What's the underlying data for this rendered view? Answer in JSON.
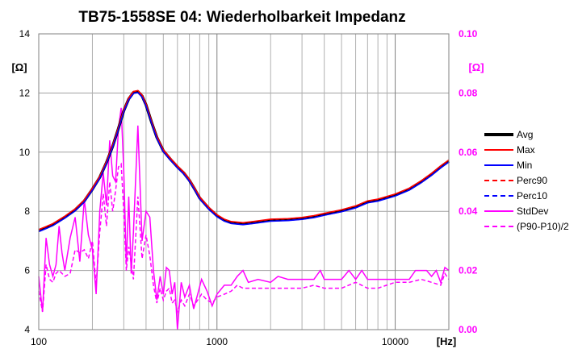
{
  "chart_data": {
    "type": "line",
    "title": "TB75-1558SE 04: Wiederholbarkeit Impedanz",
    "x_scale": "log",
    "xlim": [
      100,
      20000
    ],
    "x_tick_labels": [
      "100",
      "1000",
      "10000"
    ],
    "x_unit": "[Hz]",
    "y_left": {
      "unit": "[Ω]",
      "ylim": [
        4,
        14
      ],
      "tick_labels": [
        "4",
        "6",
        "8",
        "10",
        "12",
        "14"
      ],
      "color": "#000000"
    },
    "y_right": {
      "unit": "[Ω]",
      "ylim": [
        0,
        0.1
      ],
      "tick_labels": [
        "0.00",
        "0.02",
        "0.04",
        "0.06",
        "0.08",
        "0.10"
      ],
      "color": "#ff00ff"
    },
    "grid": true,
    "legend_position": "right",
    "colors": {
      "accent": "#ff00ff"
    },
    "impedance_curve": [
      [
        100,
        7.35
      ],
      [
        110,
        7.45
      ],
      [
        120,
        7.55
      ],
      [
        140,
        7.8
      ],
      [
        160,
        8.05
      ],
      [
        180,
        8.35
      ],
      [
        200,
        8.75
      ],
      [
        220,
        9.15
      ],
      [
        240,
        9.65
      ],
      [
        260,
        10.2
      ],
      [
        280,
        10.8
      ],
      [
        300,
        11.4
      ],
      [
        320,
        11.8
      ],
      [
        340,
        12.02
      ],
      [
        360,
        12.05
      ],
      [
        380,
        11.9
      ],
      [
        400,
        11.6
      ],
      [
        430,
        11.0
      ],
      [
        460,
        10.5
      ],
      [
        500,
        10.05
      ],
      [
        550,
        9.75
      ],
      [
        600,
        9.5
      ],
      [
        650,
        9.3
      ],
      [
        700,
        9.05
      ],
      [
        750,
        8.75
      ],
      [
        800,
        8.45
      ],
      [
        900,
        8.1
      ],
      [
        1000,
        7.85
      ],
      [
        1100,
        7.7
      ],
      [
        1200,
        7.62
      ],
      [
        1400,
        7.58
      ],
      [
        1600,
        7.62
      ],
      [
        2000,
        7.7
      ],
      [
        2500,
        7.72
      ],
      [
        3000,
        7.76
      ],
      [
        3500,
        7.82
      ],
      [
        4000,
        7.9
      ],
      [
        5000,
        8.02
      ],
      [
        6000,
        8.15
      ],
      [
        7000,
        8.32
      ],
      [
        8000,
        8.38
      ],
      [
        10000,
        8.55
      ],
      [
        12000,
        8.75
      ],
      [
        14000,
        9.0
      ],
      [
        16000,
        9.25
      ],
      [
        18000,
        9.5
      ],
      [
        20000,
        9.7
      ]
    ],
    "stddev_curve": [
      [
        100,
        0.018
      ],
      [
        105,
        0.006
      ],
      [
        110,
        0.031
      ],
      [
        115,
        0.022
      ],
      [
        120,
        0.018
      ],
      [
        125,
        0.022
      ],
      [
        130,
        0.035
      ],
      [
        135,
        0.026
      ],
      [
        140,
        0.02
      ],
      [
        150,
        0.031
      ],
      [
        160,
        0.038
      ],
      [
        170,
        0.023
      ],
      [
        180,
        0.044
      ],
      [
        190,
        0.032
      ],
      [
        200,
        0.027
      ],
      [
        210,
        0.012
      ],
      [
        220,
        0.04
      ],
      [
        230,
        0.053
      ],
      [
        240,
        0.042
      ],
      [
        250,
        0.064
      ],
      [
        260,
        0.052
      ],
      [
        270,
        0.05
      ],
      [
        280,
        0.068
      ],
      [
        290,
        0.075
      ],
      [
        300,
        0.054
      ],
      [
        310,
        0.022
      ],
      [
        320,
        0.045
      ],
      [
        330,
        0.019
      ],
      [
        340,
        0.033
      ],
      [
        360,
        0.069
      ],
      [
        380,
        0.03
      ],
      [
        400,
        0.04
      ],
      [
        420,
        0.038
      ],
      [
        440,
        0.02
      ],
      [
        460,
        0.01
      ],
      [
        480,
        0.018
      ],
      [
        500,
        0.012
      ],
      [
        520,
        0.021
      ],
      [
        540,
        0.02
      ],
      [
        560,
        0.012
      ],
      [
        580,
        0.016
      ],
      [
        600,
        0.0
      ],
      [
        630,
        0.016
      ],
      [
        660,
        0.011
      ],
      [
        700,
        0.015
      ],
      [
        740,
        0.007
      ],
      [
        780,
        0.012
      ],
      [
        820,
        0.017
      ],
      [
        880,
        0.013
      ],
      [
        940,
        0.008
      ],
      [
        1000,
        0.012
      ],
      [
        1100,
        0.015
      ],
      [
        1200,
        0.015
      ],
      [
        1300,
        0.018
      ],
      [
        1400,
        0.02
      ],
      [
        1500,
        0.016
      ],
      [
        1700,
        0.017
      ],
      [
        2000,
        0.016
      ],
      [
        2200,
        0.018
      ],
      [
        2500,
        0.017
      ],
      [
        3000,
        0.017
      ],
      [
        3500,
        0.017
      ],
      [
        3800,
        0.02
      ],
      [
        4000,
        0.017
      ],
      [
        4500,
        0.017
      ],
      [
        5000,
        0.017
      ],
      [
        5500,
        0.02
      ],
      [
        6000,
        0.017
      ],
      [
        6500,
        0.02
      ],
      [
        7000,
        0.017
      ],
      [
        8000,
        0.017
      ],
      [
        9000,
        0.017
      ],
      [
        10000,
        0.017
      ],
      [
        12000,
        0.017
      ],
      [
        13000,
        0.02
      ],
      [
        15000,
        0.02
      ],
      [
        16000,
        0.018
      ],
      [
        17000,
        0.02
      ],
      [
        18000,
        0.016
      ],
      [
        19000,
        0.021
      ],
      [
        20000,
        0.02
      ]
    ],
    "halfrange_curve": [
      [
        100,
        0.013
      ],
      [
        105,
        0.006
      ],
      [
        110,
        0.022
      ],
      [
        115,
        0.017
      ],
      [
        120,
        0.016
      ],
      [
        125,
        0.019
      ],
      [
        130,
        0.02
      ],
      [
        140,
        0.018
      ],
      [
        150,
        0.019
      ],
      [
        160,
        0.027
      ],
      [
        170,
        0.026
      ],
      [
        180,
        0.027
      ],
      [
        190,
        0.024
      ],
      [
        200,
        0.03
      ],
      [
        210,
        0.015
      ],
      [
        220,
        0.033
      ],
      [
        230,
        0.046
      ],
      [
        240,
        0.035
      ],
      [
        250,
        0.05
      ],
      [
        260,
        0.04
      ],
      [
        270,
        0.047
      ],
      [
        280,
        0.055
      ],
      [
        290,
        0.056
      ],
      [
        300,
        0.04
      ],
      [
        310,
        0.02
      ],
      [
        320,
        0.028
      ],
      [
        340,
        0.017
      ],
      [
        360,
        0.045
      ],
      [
        380,
        0.024
      ],
      [
        400,
        0.032
      ],
      [
        420,
        0.025
      ],
      [
        440,
        0.015
      ],
      [
        460,
        0.009
      ],
      [
        480,
        0.014
      ],
      [
        500,
        0.01
      ],
      [
        520,
        0.013
      ],
      [
        540,
        0.014
      ],
      [
        560,
        0.009
      ],
      [
        580,
        0.01
      ],
      [
        600,
        0.006
      ],
      [
        630,
        0.01
      ],
      [
        660,
        0.008
      ],
      [
        700,
        0.012
      ],
      [
        740,
        0.008
      ],
      [
        780,
        0.01
      ],
      [
        820,
        0.012
      ],
      [
        880,
        0.01
      ],
      [
        940,
        0.009
      ],
      [
        1000,
        0.011
      ],
      [
        1100,
        0.012
      ],
      [
        1200,
        0.013
      ],
      [
        1300,
        0.015
      ],
      [
        1400,
        0.014
      ],
      [
        1600,
        0.014
      ],
      [
        2000,
        0.014
      ],
      [
        2500,
        0.014
      ],
      [
        3000,
        0.014
      ],
      [
        3500,
        0.015
      ],
      [
        4000,
        0.014
      ],
      [
        5000,
        0.014
      ],
      [
        6000,
        0.016
      ],
      [
        7000,
        0.014
      ],
      [
        8000,
        0.014
      ],
      [
        10000,
        0.016
      ],
      [
        12000,
        0.016
      ],
      [
        14000,
        0.017
      ],
      [
        16000,
        0.016
      ],
      [
        18000,
        0.015
      ],
      [
        19000,
        0.019
      ],
      [
        20000,
        0.017
      ]
    ],
    "legend": [
      {
        "label": "Avg",
        "color": "#000000",
        "dash": "solid",
        "width": 4
      },
      {
        "label": "Max",
        "color": "#ff0000",
        "dash": "solid",
        "width": 2
      },
      {
        "label": "Min",
        "color": "#0000ff",
        "dash": "solid",
        "width": 2
      },
      {
        "label": "Perc90",
        "color": "#ff0000",
        "dash": "dashed",
        "width": 2
      },
      {
        "label": "Perc10",
        "color": "#0000ff",
        "dash": "dashed",
        "width": 2
      },
      {
        "label": "StdDev",
        "color": "#ff00ff",
        "dash": "solid",
        "width": 2
      },
      {
        "label": "(P90-P10)/2",
        "color": "#ff00ff",
        "dash": "dashed",
        "width": 2
      }
    ]
  }
}
